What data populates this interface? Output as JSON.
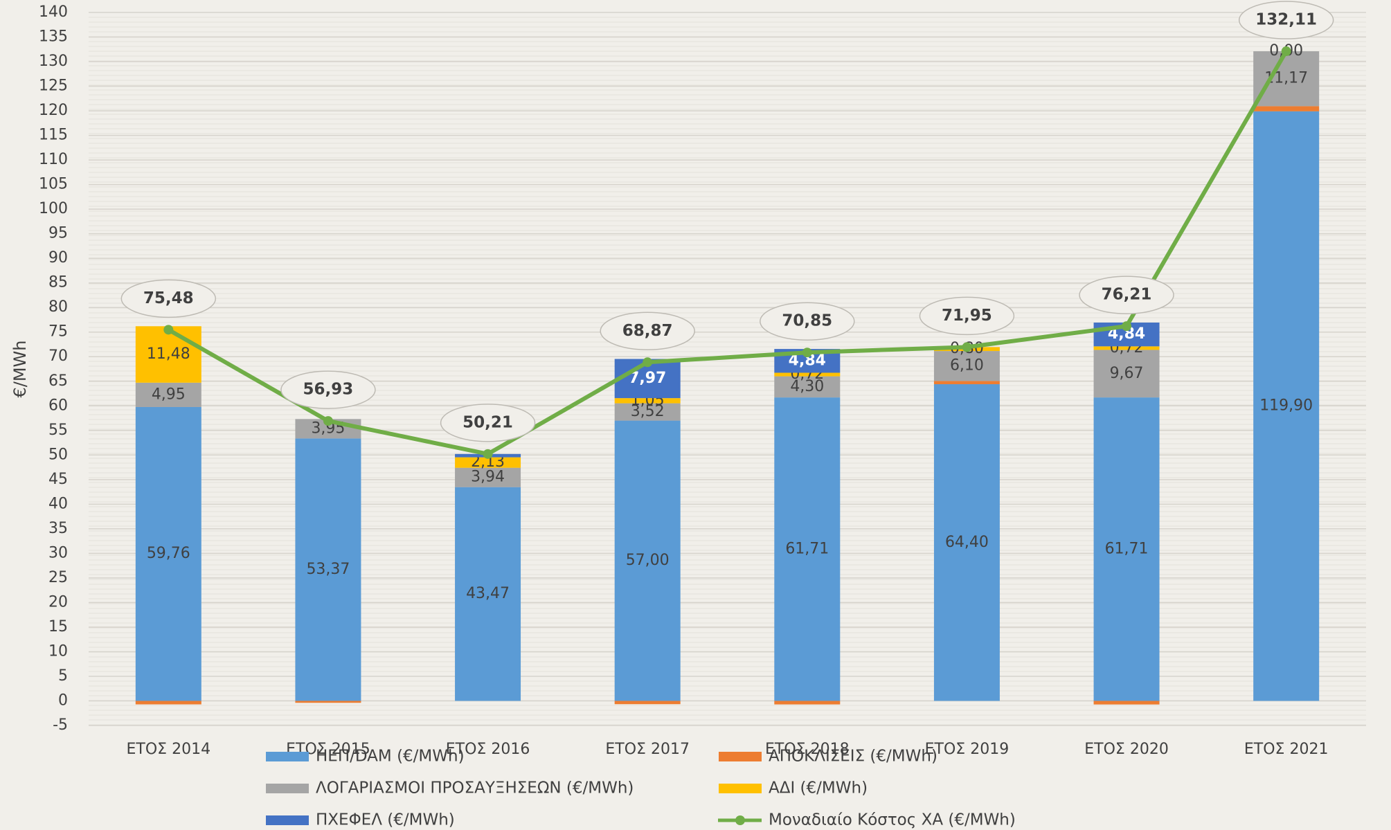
{
  "chart_data": {
    "type": "bar",
    "stacked": true,
    "y_label": "€/MWh",
    "categories": [
      "ΕΤΟΣ 2014",
      "ΕΤΟΣ 2015",
      "ΕΤΟΣ 2016",
      "ΕΤΟΣ 2017",
      "ΕΤΟΣ 2018",
      "ΕΤΟΣ 2019",
      "ΕΤΟΣ 2020",
      "ΕΤΟΣ 2021"
    ],
    "ylim": [
      -5,
      140
    ],
    "yticks": [
      -5,
      0,
      5,
      10,
      15,
      20,
      25,
      30,
      35,
      40,
      45,
      50,
      55,
      60,
      65,
      70,
      75,
      80,
      85,
      90,
      95,
      100,
      105,
      110,
      115,
      120,
      125,
      130,
      135,
      140
    ],
    "grid": true,
    "legend": "bottom",
    "series": [
      {
        "name": "ΗΕΠ/DAM (€/MWh)",
        "color": "#5b9bd5",
        "values": [
          59.76,
          53.37,
          43.47,
          57.0,
          61.71,
          64.4,
          61.71,
          119.9
        ],
        "value_labels": [
          "59,76",
          "53,37",
          "43,47",
          "57,00",
          "61,71",
          "64,40",
          "61,71",
          "119,90"
        ]
      },
      {
        "name": "ΑΠΟΚΛΙΣΕΙΣ (€/MWh)",
        "color": "#ed7d31",
        "values": [
          -0.71,
          -0.39,
          0,
          -0.67,
          -0.72,
          0.65,
          -0.73,
          1.04
        ]
      },
      {
        "name": "ΛΟΓΑΡΙΑΣΜΟΙ ΠΡΟΣΑΥΞΗΣΕΩΝ (€/MWh)",
        "color": "#a5a5a5",
        "values": [
          4.95,
          3.95,
          3.94,
          3.52,
          4.3,
          6.1,
          9.67,
          11.17
        ],
        "value_labels": [
          "4,95",
          "3,95",
          "3,94",
          "3,52",
          "4,30",
          "6,10",
          "9,67",
          "11,17"
        ]
      },
      {
        "name": "ΑΔΙ (€/MWh)",
        "color": "#ffc000",
        "values": [
          11.48,
          0,
          2.13,
          1.05,
          0.72,
          0.8,
          0.72,
          0.0
        ],
        "value_labels": [
          "11,48",
          null,
          "2,13",
          "1,05",
          "0,72",
          "0,80",
          "0,72",
          "0,00"
        ]
      },
      {
        "name": "ΠΧΕΦΕΛ (€/MWh)",
        "color": "#4472c4",
        "values": [
          0,
          0,
          0.67,
          7.97,
          4.84,
          0,
          4.84,
          0
        ],
        "value_labels": [
          null,
          null,
          null,
          "7,97",
          "4,84",
          null,
          "4,84",
          null
        ]
      },
      {
        "name": "Μοναδιαίο Κόστος ΧΑ (€/MWh)",
        "type": "line",
        "color": "#70ad47",
        "values": [
          75.48,
          56.93,
          50.21,
          68.87,
          70.85,
          71.95,
          76.21,
          132.11
        ],
        "value_labels": [
          "75,48",
          "56,93",
          "50,21",
          "68,87",
          "70,85",
          "71,95",
          "76,21",
          "132,11"
        ]
      }
    ]
  }
}
